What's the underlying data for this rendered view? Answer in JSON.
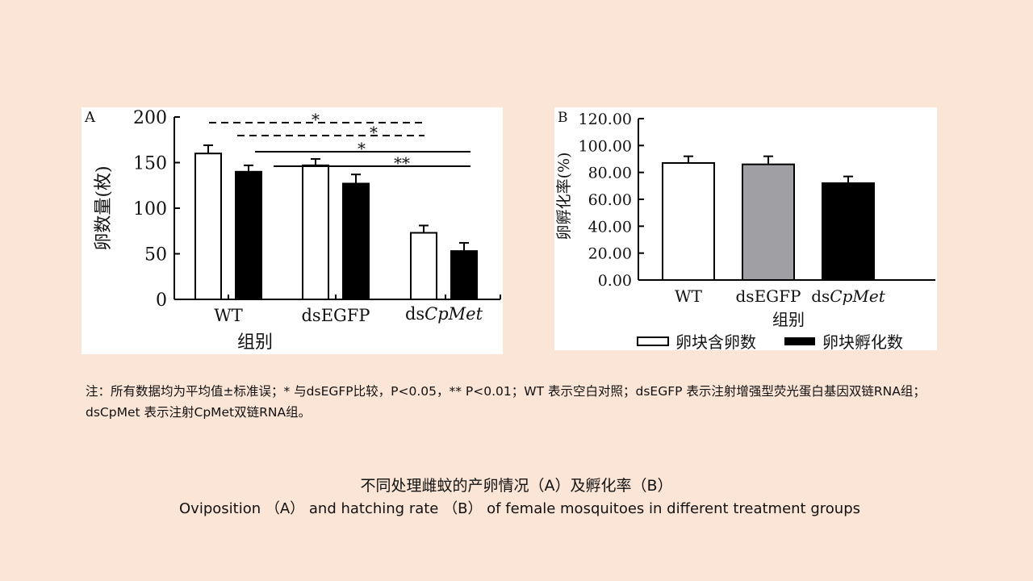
{
  "note": "注：所有数据均为平均值±标准误；* 与dsEGFP比较，P<0.05，** P<0.01；WT 表示空白对照；dsEGFP 表示注射增强型荧光蛋白基因双链RNA组；dsCpMet  表示注射CpMet双链RNA组。",
  "caption_cn": "不同处理雌蚊的产卵情况（A）及孵化率（B）",
  "caption_en": "Oviposition （A） and hatching rate （B） of female mosquitoes in different treatment groups",
  "chart_data": [
    {
      "type": "bar",
      "panel_label": "A",
      "ylabel": "卵数量(枚)",
      "xlabel": "组别",
      "categories": [
        "WT",
        "dsEGFP",
        "dsCpMet"
      ],
      "ylim": [
        0,
        200
      ],
      "yticks": [
        "0",
        "50",
        "100",
        "150",
        "200"
      ],
      "series": [
        {
          "name": "卵块含卵数",
          "color": "#ffffff",
          "values": [
            160,
            147,
            73
          ],
          "errors": [
            9,
            7,
            8
          ]
        },
        {
          "name": "卵块孵化数",
          "color": "#000000",
          "values": [
            140,
            127,
            53
          ],
          "errors": [
            7,
            10,
            9
          ]
        }
      ],
      "annotations": [
        {
          "text": "*",
          "style": "dashed"
        },
        {
          "text": "*",
          "style": "dashed"
        },
        {
          "text": "*",
          "style": "solid"
        },
        {
          "text": "**",
          "style": "solid"
        }
      ]
    },
    {
      "type": "bar",
      "panel_label": "B",
      "ylabel": "卵孵化率(%)",
      "xlabel": "组别",
      "categories": [
        "WT",
        "dsEGFP",
        "dsCpMet"
      ],
      "ylim": [
        0,
        120
      ],
      "yticks": [
        "0.00",
        "20.00",
        "40.00",
        "60.00",
        "80.00",
        "100.00",
        "120.00"
      ],
      "values": [
        87,
        86,
        72
      ],
      "errors": [
        5,
        6,
        5
      ],
      "colors": [
        "#ffffff",
        "#a0a0a4",
        "#000000"
      ],
      "legend": [
        {
          "label": "卵块含卵数",
          "color": "#ffffff"
        },
        {
          "label": "卵块孵化数",
          "color": "#000000"
        }
      ]
    }
  ]
}
